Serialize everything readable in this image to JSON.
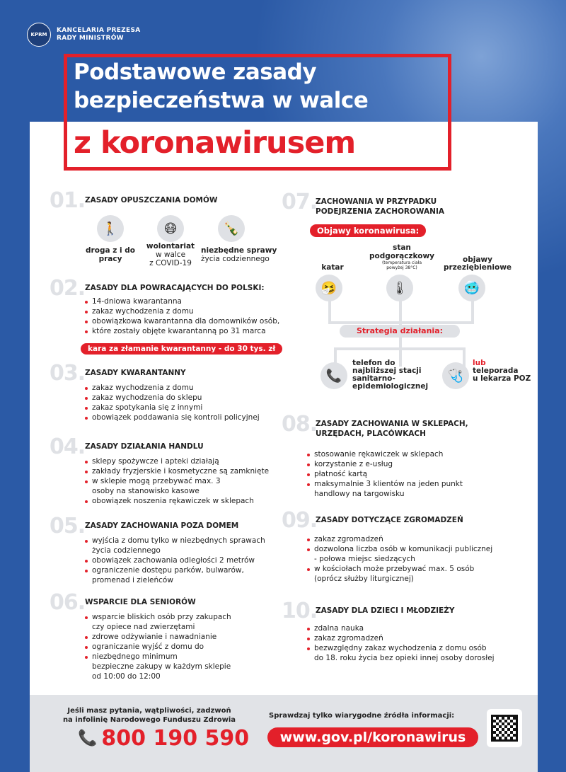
{
  "header": {
    "org_line1": "KANCELARIA PREZESA",
    "org_line2": "RADY MINISTRÓW",
    "seal": "KPRM"
  },
  "title": {
    "line1": "Podstawowe zasady",
    "line2": "bezpieczeństwa w walce",
    "line3": "z koronawirusem"
  },
  "colors": {
    "accent": "#e3202a",
    "background": "#2b5aa6",
    "panel": "#ffffff",
    "footer": "#e1e3e7"
  },
  "sections": {
    "s01": {
      "num": "01.",
      "title": "ZASADY OPUSZCZANIA DOMÓW",
      "items": [
        {
          "icon": "walking-with-bag-icon",
          "bold": "droga z i do",
          "bold2": "pracy",
          "rest": "",
          "rest2": ""
        },
        {
          "icon": "masked-face-icon",
          "bold": "wolontariat",
          "bold2": "",
          "rest": "w walce",
          "rest2": "z COVID-19"
        },
        {
          "icon": "groceries-icon",
          "bold": "niezbędne sprawy",
          "bold2": "",
          "rest": "życia codziennego",
          "rest2": ""
        }
      ]
    },
    "s02": {
      "num": "02.",
      "title": "ZASADY DLA POWRACAJĄCYCH DO POLSKI:",
      "items": [
        "14-dniowa kwarantanna",
        "zakaz wychodzenia z domu",
        "obowiązkowa kwarantanna dla domowników osób,",
        "które zostały objęte kwarantanną po 31 marca"
      ],
      "penalty": "kara za złamanie kwarantanny - do 30 tys. zł"
    },
    "s03": {
      "num": "03.",
      "title": "ZASADY KWARANTANNY",
      "items": [
        "zakaz wychodzenia z domu",
        "zakaz wychodzenia do sklepu",
        "zakaz spotykania się z innymi",
        "obowiązek poddawania się kontroli policyjnej"
      ]
    },
    "s04": {
      "num": "04.",
      "title": "ZASADY DZIAŁANIA HANDLU",
      "items": [
        "sklepy spożywcze i apteki działają",
        "zakłady fryzjerskie i kosmetyczne są zamknięte",
        "w sklepie mogą przebywać max. 3",
        "osoby na stanowisko kasowe",
        "obowiązek noszenia rękawiczek w sklepach"
      ]
    },
    "s05": {
      "num": "05.",
      "title": "ZASADY ZACHOWANIA POZA DOMEM",
      "items": [
        "wyjścia z domu tylko w niezbędnych sprawach",
        "życia codziennego",
        "obowiązek zachowania odległości 2 metrów",
        "ograniczenie dostępu parków, bulwarów,",
        "promenad i zieleńców"
      ]
    },
    "s06": {
      "num": "06.",
      "title": "WSPARCIE DLA SENIORÓW",
      "items": [
        "wsparcie bliskich osób przy zakupach",
        "czy opiece nad zwierzętami",
        "zdrowe odżywianie i nawadnianie",
        "ograniczanie wyjść z domu do",
        "niezbędnego minimum",
        "bezpieczne zakupy w każdym sklepie",
        "od 10:00 do 12:00"
      ]
    },
    "s07": {
      "num": "07.",
      "title1": "ZACHOWANIA W PRZYPADKU",
      "title2": "PODEJRZENIA ZACHOROWANIA",
      "symptoms_label": "Objawy koronawirusa:",
      "symptoms": [
        {
          "label": "katar",
          "icon": "runny-nose-icon"
        },
        {
          "label": "stan",
          "label2": "podgorączkowy",
          "note": "(temperatura ciała",
          "note2": "powyżej 38°C)",
          "icon": "thermometer-icon"
        },
        {
          "label": "objawy",
          "label2": "przeziębieniowe",
          "icon": "cold-symptoms-icon"
        }
      ],
      "strategy_label": "Strategia działania:",
      "phone": {
        "icon": "phone-icon",
        "l1": "telefon do",
        "l2": "najbliższej stacji",
        "l3": "sanitarno-",
        "l4": "epidemiologicznej"
      },
      "tele": {
        "icon": "stethoscope-icon",
        "or": "lub",
        "l1": "teleporada",
        "l2": "u lekarza POZ"
      }
    },
    "s08": {
      "num": "08.",
      "title1": "ZASADY ZACHOWANIA W SKLEPACH,",
      "title2": "URZĘDACH, PLACÓWKACH",
      "items": [
        "stosowanie rękawiczek w sklepach",
        "korzystanie z e-usług",
        "płatność kartą",
        "maksymalnie 3 klientów na jeden punkt",
        "handlowy na targowisku"
      ]
    },
    "s09": {
      "num": "09.",
      "title": "ZASADY DOTYCZĄCE ZGROMADZEŃ",
      "items": [
        "zakaz zgromadzeń",
        "dozwolona liczba osób w komunikacji publicznej",
        "- połowa miejsc siedzących",
        "w kościołach może przebywać max. 5 osób",
        "(oprócz służby liturgicznej)"
      ]
    },
    "s10": {
      "num": "10.",
      "title": "ZASADY DLA DZIECI I MŁODZIEŻY",
      "items": [
        "zdalna nauka",
        "zakaz zgromadzeń",
        "bezwzględny zakaz wychodzenia z domu osób",
        "do 18. roku życia bez opieki innej osoby dorosłej"
      ]
    }
  },
  "footer": {
    "q1": "Jeśli masz pytania, wątpliwości, zadzwoń",
    "q2": "na infolinię Narodowego Funduszu Zdrowia",
    "phone": "800 190 590",
    "check": "Sprawdzaj tylko wiarygodne źródła informacji:",
    "url": "www.gov.pl/koronawirus"
  }
}
